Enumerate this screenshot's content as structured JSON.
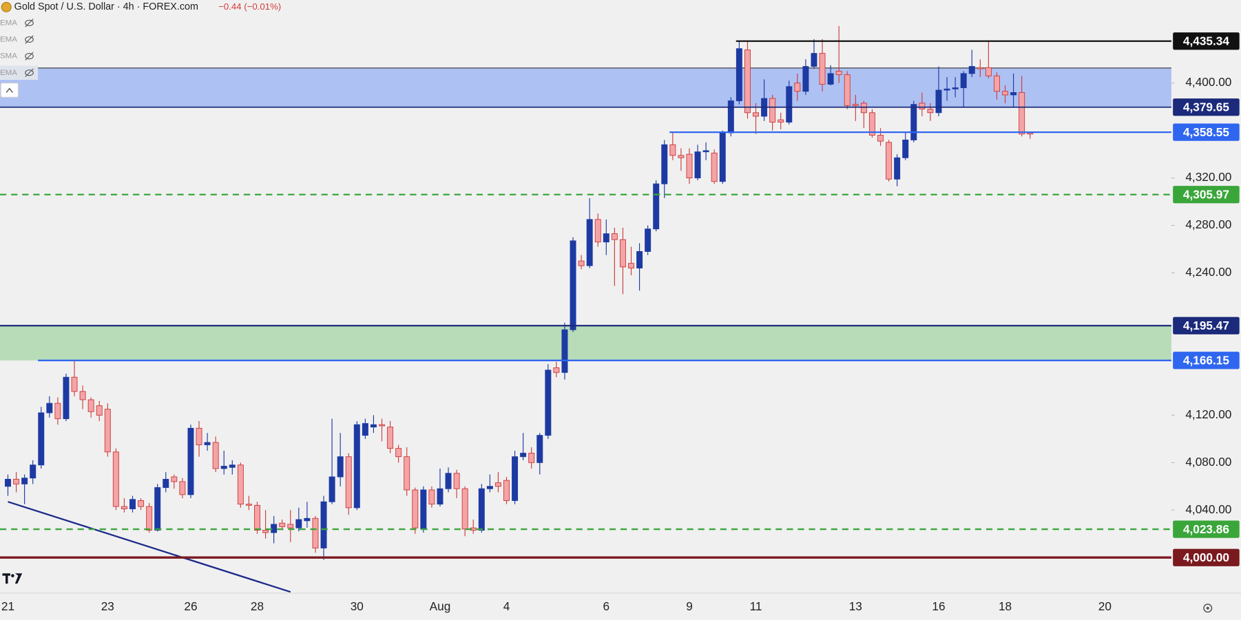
{
  "chart_data": {
    "type": "candlestick",
    "title": "Gold Spot / U.S. Dollar · 4h · FOREX.com",
    "change": "−0.44 (−0.01%)",
    "indicators": [
      "EMA",
      "EMA",
      "SMA",
      "EMA"
    ],
    "categories": [
      "21",
      null,
      null,
      null,
      null,
      null,
      null,
      null,
      null,
      null,
      null,
      null,
      "23",
      null,
      null,
      null,
      null,
      null,
      null,
      null,
      null,
      null,
      "26",
      null,
      null,
      null,
      null,
      null,
      null,
      null,
      "28",
      null,
      null,
      null,
      null,
      null,
      null,
      null,
      null,
      null,
      null,
      null,
      "30",
      null,
      null,
      null,
      null,
      null,
      null,
      null,
      null,
      null,
      "Aug",
      null,
      null,
      null,
      null,
      null,
      null,
      null,
      "4",
      null,
      null,
      null,
      null,
      null,
      null,
      null,
      null,
      null,
      null,
      null,
      "6",
      null,
      null,
      null,
      null,
      null,
      null,
      null,
      null,
      null,
      "9",
      null,
      null,
      null,
      null,
      null,
      null,
      null,
      "11",
      null,
      null,
      null,
      null,
      null,
      null,
      null,
      null,
      null,
      null,
      null,
      "13",
      null,
      null,
      null,
      null,
      null,
      null,
      null,
      null,
      null,
      "16",
      null,
      null,
      null,
      null,
      null,
      null,
      null,
      "18",
      null,
      null,
      null,
      null,
      null,
      null,
      null,
      null,
      null,
      null,
      null,
      "20"
    ],
    "open": [
      4060,
      4066,
      4062,
      4067,
      4078,
      4122,
      4130,
      4117,
      4152,
      4140,
      4133,
      4128,
      4125,
      4089,
      4043,
      4041,
      4048,
      4043,
      4023,
      4059,
      4068,
      4064,
      4053,
      4109,
      4095,
      4097,
      4075,
      4076,
      4078,
      4045,
      4044,
      4023,
      4021,
      4029,
      4028,
      4025,
      4031,
      4033,
      4008,
      4047,
      4068,
      4085,
      4042,
      4103,
      4110,
      4112,
      4110,
      4092,
      4085,
      4057,
      4024,
      4057,
      4045,
      4058,
      4071,
      4058,
      4025,
      4023,
      4058,
      4063,
      4065,
      4048,
      4085,
      4088,
      4080,
      4103,
      4160,
      4156,
      4192,
      4250,
      4246,
      4285,
      4266,
      4273,
      4268,
      4248,
      4244,
      4258,
      4277,
      4315,
      4348,
      4339,
      4340,
      4320,
      4342,
      4341,
      4317,
      4358,
      4385,
      4428,
      4375,
      4372,
      4387,
      4369,
      4367,
      4400,
      4393,
      4414,
      4425,
      4399,
      4410,
      4407,
      4382,
      4383,
      4375,
      4356,
      4350,
      4319,
      4337,
      4352,
      4383,
      4378,
      4375,
      4394,
      4395,
      4396,
      4408,
      4413,
      4413,
      4406,
      4393,
      4390,
      4392,
      4358,
      null,
      null,
      null,
      null,
      null,
      null,
      null,
      null,
      null
    ],
    "high": [
      4070,
      4072,
      4070,
      4082,
      4127,
      4136,
      4135,
      4155,
      4166,
      4145,
      4135,
      4132,
      4130,
      4092,
      4050,
      4052,
      4050,
      4046,
      4062,
      4072,
      4070,
      4067,
      4112,
      4115,
      4105,
      4102,
      4090,
      4082,
      4080,
      4052,
      4047,
      4040,
      4035,
      4032,
      4040,
      4042,
      4047,
      4035,
      4052,
      4117,
      4105,
      4088,
      4115,
      4117,
      4120,
      4117,
      4115,
      4095,
      4093,
      4059,
      4060,
      4060,
      4075,
      4076,
      4074,
      4060,
      4032,
      4062,
      4070,
      4072,
      4068,
      4090,
      4105,
      4093,
      4105,
      4163,
      4165,
      4198,
      4270,
      4255,
      4303,
      4290,
      4285,
      4278,
      4278,
      4262,
      4265,
      4280,
      4318,
      4352,
      4358,
      4345,
      4345,
      4348,
      4350,
      4344,
      4360,
      4388,
      4435,
      4435,
      4383,
      4403,
      4390,
      4375,
      4402,
      4408,
      4420,
      4437,
      4437,
      4415,
      4448,
      4410,
      4390,
      4385,
      4378,
      4362,
      4352,
      4340,
      4358,
      4385,
      4392,
      4383,
      4414,
      4405,
      4405,
      4410,
      4428,
      4420,
      4436,
      4409,
      4398,
      4408,
      4406,
      4359,
      null,
      null,
      null,
      null,
      null,
      null,
      null,
      null,
      null
    ],
    "low": [
      4052,
      4055,
      4045,
      4062,
      4075,
      4118,
      4112,
      4115,
      4136,
      4125,
      4118,
      4115,
      4085,
      4040,
      4038,
      4038,
      4040,
      4021,
      4022,
      4055,
      4058,
      4050,
      4050,
      4085,
      4090,
      4072,
      4070,
      4070,
      4042,
      4040,
      4020,
      4016,
      4012,
      4023,
      4013,
      4022,
      4025,
      4004,
      3998,
      4045,
      4060,
      4036,
      4040,
      4100,
      4105,
      4098,
      4088,
      4080,
      4052,
      4020,
      4021,
      4042,
      4043,
      4055,
      4050,
      4018,
      4020,
      4021,
      4055,
      4055,
      4045,
      4045,
      4082,
      4075,
      4070,
      4100,
      4152,
      4150,
      4190,
      4243,
      4244,
      4262,
      4255,
      4229,
      4222,
      4238,
      4225,
      4255,
      4275,
      4303,
      4335,
      4326,
      4315,
      4318,
      4335,
      4315,
      4315,
      4355,
      4382,
      4370,
      4357,
      4368,
      4360,
      4361,
      4365,
      4385,
      4390,
      4412,
      4393,
      4398,
      4400,
      4378,
      4368,
      4362,
      4354,
      4347,
      4317,
      4313,
      4335,
      4350,
      4372,
      4368,
      4372,
      4385,
      4388,
      4380,
      4405,
      4405,
      4404,
      4386,
      4383,
      4380,
      4355,
      4353,
      null,
      null,
      null,
      null,
      null,
      null,
      null,
      null,
      null
    ],
    "close": [
      4066,
      4062,
      4067,
      4078,
      4122,
      4130,
      4117,
      4152,
      4140,
      4133,
      4123,
      4120,
      4089,
      4043,
      4041,
      4049,
      4043,
      4023,
      4059,
      4066,
      4064,
      4053,
      4109,
      4095,
      4097,
      4075,
      4077,
      4078,
      4045,
      4044,
      4023,
      4021,
      4028,
      4026,
      4025,
      4032,
      4033,
      4008,
      4047,
      4068,
      4085,
      4042,
      4112,
      4113,
      4112,
      4111,
      4092,
      4085,
      4057,
      4025,
      4057,
      4045,
      4058,
      4071,
      4058,
      4024,
      4023,
      4058,
      4060,
      4060,
      4048,
      4085,
      4088,
      4080,
      4103,
      4158,
      4156,
      4192,
      4267,
      4246,
      4285,
      4266,
      4273,
      4268,
      4245,
      4244,
      4258,
      4277,
      4315,
      4348,
      4339,
      4337,
      4320,
      4342,
      4343,
      4317,
      4358,
      4385,
      4429,
      4375,
      4372,
      4387,
      4367,
      4367,
      4397,
      4393,
      4414,
      4425,
      4399,
      4408,
      4407,
      4381,
      4381,
      4375,
      4356,
      4351,
      4319,
      4337,
      4352,
      4382,
      4378,
      4375,
      4394,
      4395,
      4396,
      4408,
      4414,
      4412,
      4406,
      4393,
      4390,
      4392,
      4357,
      4357,
      null,
      null,
      null,
      null,
      null,
      null,
      null,
      null,
      null
    ],
    "up_color": "#1d3aa3",
    "down_color": "#f4a4a6",
    "down_border": "#cc3b3b",
    "ylim": [
      3970,
      4470
    ],
    "yticks": [
      {
        "value": 4040,
        "label": "4,040.00"
      },
      {
        "value": 4080,
        "label": "4,080.00"
      },
      {
        "value": 4120,
        "label": "4,120.00"
      },
      {
        "value": 4240,
        "label": "4,240.00"
      },
      {
        "value": 4280,
        "label": "4,280.00"
      },
      {
        "value": 4320,
        "label": "4,320.00"
      },
      {
        "value": 4400,
        "label": "4,400.00"
      }
    ],
    "zones": [
      {
        "low": 4379.65,
        "high": 4412.67,
        "color": "#aec1f3",
        "border": "#333333"
      },
      {
        "low": 4166.15,
        "high": 4195.47,
        "color": "#b8dcb8",
        "border": "#1b2a7a"
      }
    ],
    "levels": [
      {
        "value": 4435.34,
        "label": "4,435.34",
        "color": "#111111",
        "start": 88,
        "dashed": false,
        "width": 2
      },
      {
        "value": 4379.65,
        "label": "4,379.65",
        "color": "#1b2a7a",
        "start": 0,
        "dashed": false,
        "width": 1.5
      },
      {
        "value": 4358.55,
        "label": "4,358.55",
        "color": "#2f66f0",
        "start": 80,
        "dashed": false,
        "width": 2
      },
      {
        "value": 4305.97,
        "label": "4,305.97",
        "color": "#3aa63a",
        "start": 0,
        "dashed": true,
        "width": 2
      },
      {
        "value": 4195.47,
        "label": "4,195.47",
        "color": "#1b2a7a",
        "start": 0,
        "dashed": false,
        "width": 2
      },
      {
        "value": 4166.15,
        "label": "4,166.15",
        "color": "#2f66f0",
        "start": 4,
        "dashed": false,
        "width": 2
      },
      {
        "value": 4023.86,
        "label": "4,023.86",
        "color": "#3aa63a",
        "start": 0,
        "dashed": true,
        "width": 2
      },
      {
        "value": 4000.0,
        "label": "4,000.00",
        "color": "#7a1a1f",
        "start": 0,
        "dashed": false,
        "width": 3
      }
    ],
    "trendline": {
      "x": [
        0,
        34
      ],
      "y": [
        4047,
        3971
      ],
      "color": "#1b2a8a"
    }
  }
}
